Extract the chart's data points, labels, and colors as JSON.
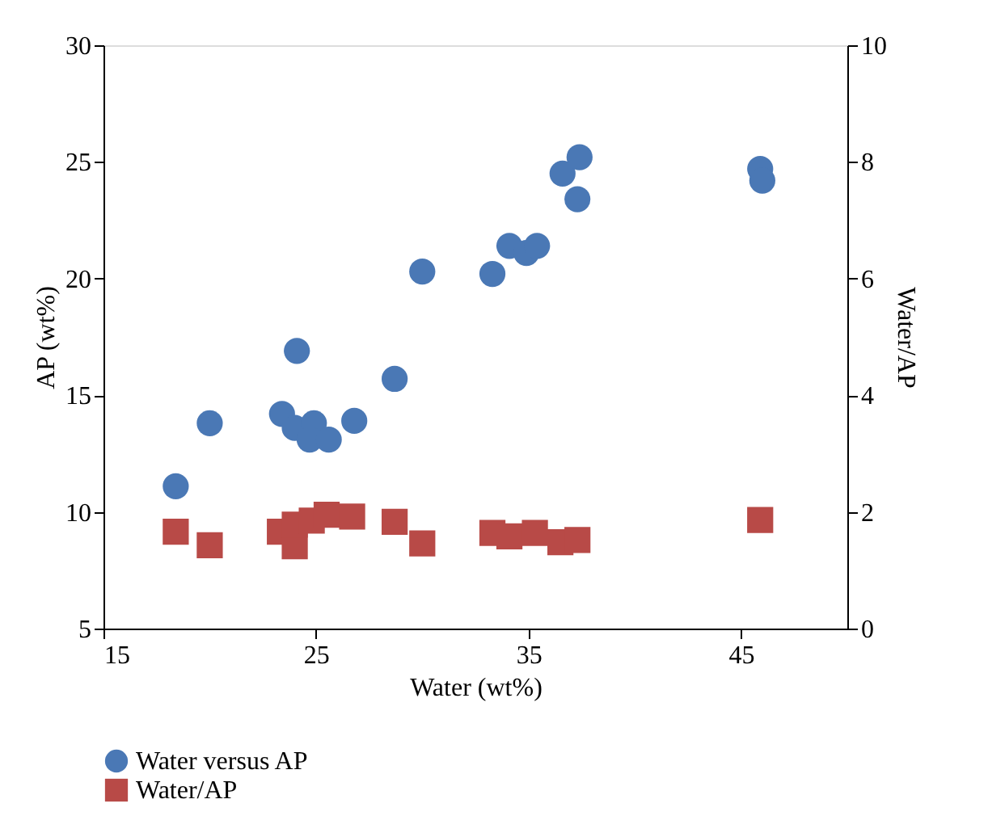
{
  "chart_data": {
    "type": "scatter",
    "xlabel": "Water (wt%)",
    "ylabel": "AP (wt%)",
    "y2label": "Water/AP",
    "xlim": [
      15,
      50
    ],
    "xticks": [
      15,
      25,
      35,
      45
    ],
    "ylim": [
      5,
      30
    ],
    "yticks": [
      5,
      10,
      15,
      20,
      25,
      30
    ],
    "y2lim": [
      0,
      10
    ],
    "y2ticks": [
      0,
      2,
      4,
      6,
      8,
      10
    ],
    "grid": false,
    "legend": "bottom",
    "series": [
      {
        "name": "Water versus AP",
        "color": "#4a78b5",
        "marker": "circle",
        "x": [
          18.4,
          20.0,
          23.4,
          24.1,
          24.0,
          24.9,
          24.7,
          25.6,
          26.8,
          28.7,
          30.0,
          33.3,
          34.1,
          34.9,
          35.4,
          36.6,
          37.4,
          37.3,
          45.9,
          46.0
        ],
        "values": [
          11.1,
          13.8,
          14.2,
          16.9,
          13.6,
          13.8,
          13.1,
          13.1,
          13.9,
          15.7,
          20.3,
          20.2,
          21.4,
          21.1,
          21.4,
          24.5,
          25.2,
          23.4,
          24.7,
          24.2
        ]
      },
      {
        "name": "Water/AP",
        "color": "#b84a47",
        "marker": "square",
        "axis": "y2",
        "x": [
          18.4,
          20.0,
          23.3,
          24.0,
          24.0,
          24.8,
          25.5,
          26.7,
          28.7,
          30.0,
          33.3,
          34.1,
          35.3,
          36.5,
          37.3,
          45.9
        ],
        "values": [
          1.66,
          1.43,
          1.66,
          1.41,
          1.78,
          1.85,
          1.95,
          1.92,
          1.83,
          1.46,
          1.64,
          1.58,
          1.64,
          1.48,
          1.52,
          1.86
        ]
      }
    ]
  }
}
